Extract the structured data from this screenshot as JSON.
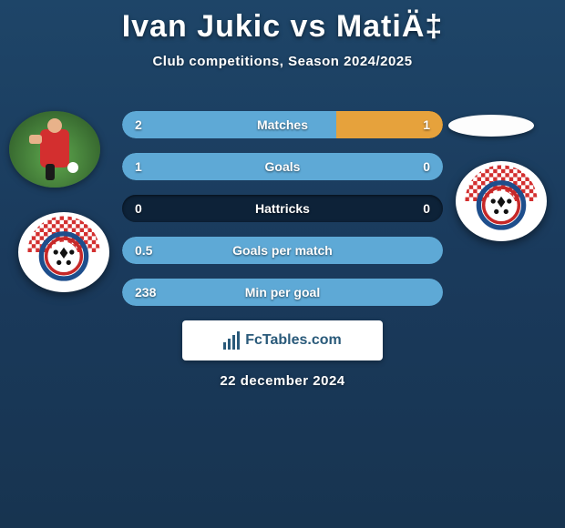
{
  "title": "Ivan Jukic vs MatiÄ‡",
  "subtitle": "Club competitions, Season 2024/2025",
  "date": "22 december 2024",
  "logo_text": "FcTables.com",
  "colors": {
    "bar_track": "#0d2238",
    "fill_left": "#5ea9d6",
    "fill_right": "#e6a23c",
    "background": "#1a3a5c"
  },
  "club_badge": {
    "name": "NK Siroki Brijeg",
    "check_top": "#d32f2f",
    "check_bg": "#ffffff",
    "ring_blue": "#1e4e8c",
    "ring_red": "#c62828",
    "ball_bg": "#ffffff",
    "ball_spots": "#111111"
  },
  "stats": [
    {
      "label": "Matches",
      "left_val": "2",
      "right_val": "1",
      "left_pct": 66.7,
      "right_pct": 33.3
    },
    {
      "label": "Goals",
      "left_val": "1",
      "right_val": "0",
      "left_pct": 100,
      "right_pct": 0
    },
    {
      "label": "Hattricks",
      "left_val": "0",
      "right_val": "0",
      "left_pct": 0,
      "right_pct": 0
    },
    {
      "label": "Goals per match",
      "left_val": "0.5",
      "right_val": "",
      "left_pct": 100,
      "right_pct": 0
    },
    {
      "label": "Min per goal",
      "left_val": "238",
      "right_val": "",
      "left_pct": 100,
      "right_pct": 0
    }
  ]
}
